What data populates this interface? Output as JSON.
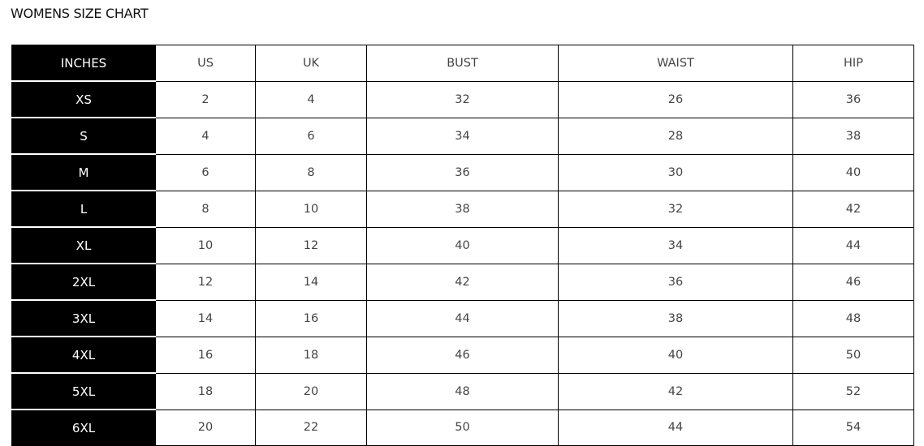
{
  "title": "WOMENS SIZE CHART",
  "headers": [
    "INCHES",
    "US",
    "UK",
    "BUST",
    "WAIST",
    "HIP"
  ],
  "rows": [
    [
      "XS",
      "2",
      "4",
      "32",
      "26",
      "36"
    ],
    [
      "S",
      "4",
      "6",
      "34",
      "28",
      "38"
    ],
    [
      "M",
      "6",
      "8",
      "36",
      "30",
      "40"
    ],
    [
      "L",
      "8",
      "10",
      "38",
      "32",
      "42"
    ],
    [
      "XL",
      "10",
      "12",
      "40",
      "34",
      "44"
    ],
    [
      "2XL",
      "12",
      "14",
      "42",
      "36",
      "46"
    ],
    [
      "3XL",
      "14",
      "16",
      "44",
      "38",
      "48"
    ],
    [
      "4XL",
      "16",
      "18",
      "46",
      "40",
      "50"
    ],
    [
      "5XL",
      "18",
      "20",
      "48",
      "42",
      "52"
    ],
    [
      "6XL",
      "20",
      "22",
      "50",
      "44",
      "54"
    ]
  ]
}
